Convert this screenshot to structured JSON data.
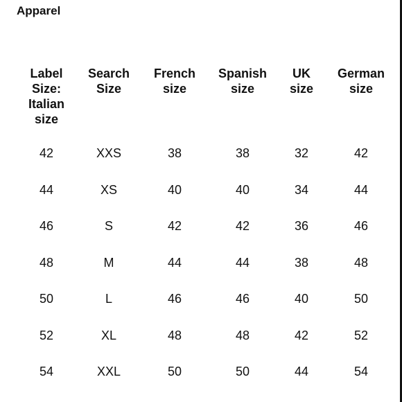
{
  "title": "Apparel",
  "table": {
    "headers": [
      "Label\nSize:\nItalian\nsize",
      "Search\nSize",
      "French\nsize",
      "Spanish\nsize",
      "UK\nsize",
      "German\nsize"
    ],
    "rows": [
      [
        "42",
        "XXS",
        "38",
        "38",
        "32",
        "42"
      ],
      [
        "44",
        "XS",
        "40",
        "40",
        "34",
        "44"
      ],
      [
        "46",
        "S",
        "42",
        "42",
        "36",
        "46"
      ],
      [
        "48",
        "M",
        "44",
        "44",
        "38",
        "48"
      ],
      [
        "50",
        "L",
        "46",
        "46",
        "40",
        "50"
      ],
      [
        "52",
        "XL",
        "48",
        "48",
        "42",
        "52"
      ],
      [
        "54",
        "XXL",
        "50",
        "50",
        "44",
        "54"
      ]
    ]
  }
}
